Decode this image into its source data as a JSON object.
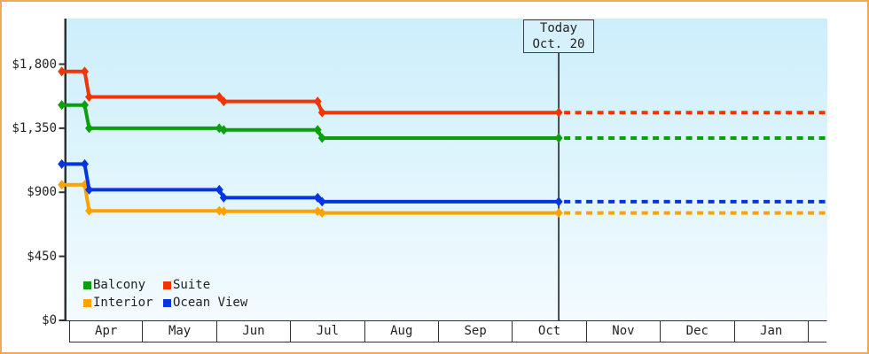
{
  "colors": {
    "frame_border": "#efa95d",
    "plot_bg_top": "#cceefb",
    "plot_bg_bottom": "#f3fbfe",
    "axis": "#2e3133",
    "text": "#222222",
    "today_line": "#333a3d",
    "today_box_bg": "#d6f1fc"
  },
  "chart_data": {
    "type": "line",
    "step": true,
    "title": "",
    "xlabel": "",
    "ylabel": "",
    "x_axis": {
      "unit": "month",
      "tick_labels": [
        "Apr",
        "May",
        "Jun",
        "Jul",
        "Aug",
        "Sep",
        "Oct",
        "Nov",
        "Dec",
        "Jan"
      ]
    },
    "y_axis": {
      "tick_values": [
        0,
        450,
        900,
        1350,
        1800
      ],
      "tick_labels": [
        "$0",
        "$450",
        "$900",
        "$1,350",
        "$1,800"
      ],
      "ylim": [
        0,
        2120
      ],
      "grid": false
    },
    "annotation": {
      "label": [
        "Today",
        "Oct. 20"
      ],
      "x_month": 6.62
    },
    "x_change_points_month": [
      -0.1,
      0.24,
      2.06,
      3.39
    ],
    "x_end_month": 10.24,
    "projection_dashed_after_today": true,
    "series": [
      {
        "name": "Suite",
        "color": "#f13502",
        "values_usd": [
          1749,
          1570,
          1538,
          1460
        ]
      },
      {
        "name": "Balcony",
        "color": "#0aa00a",
        "values_usd": [
          1513,
          1350,
          1338,
          1281
        ]
      },
      {
        "name": "Ocean View",
        "color": "#0535e2",
        "values_usd": [
          1098,
          918,
          862,
          834
        ]
      },
      {
        "name": "Interior",
        "color": "#ffa200",
        "values_usd": [
          953,
          770,
          766,
          755
        ]
      }
    ],
    "legend": {
      "position": "bottom-left-inside",
      "rows": [
        [
          "Balcony",
          "Suite"
        ],
        [
          "Interior",
          "Ocean View"
        ]
      ]
    }
  }
}
